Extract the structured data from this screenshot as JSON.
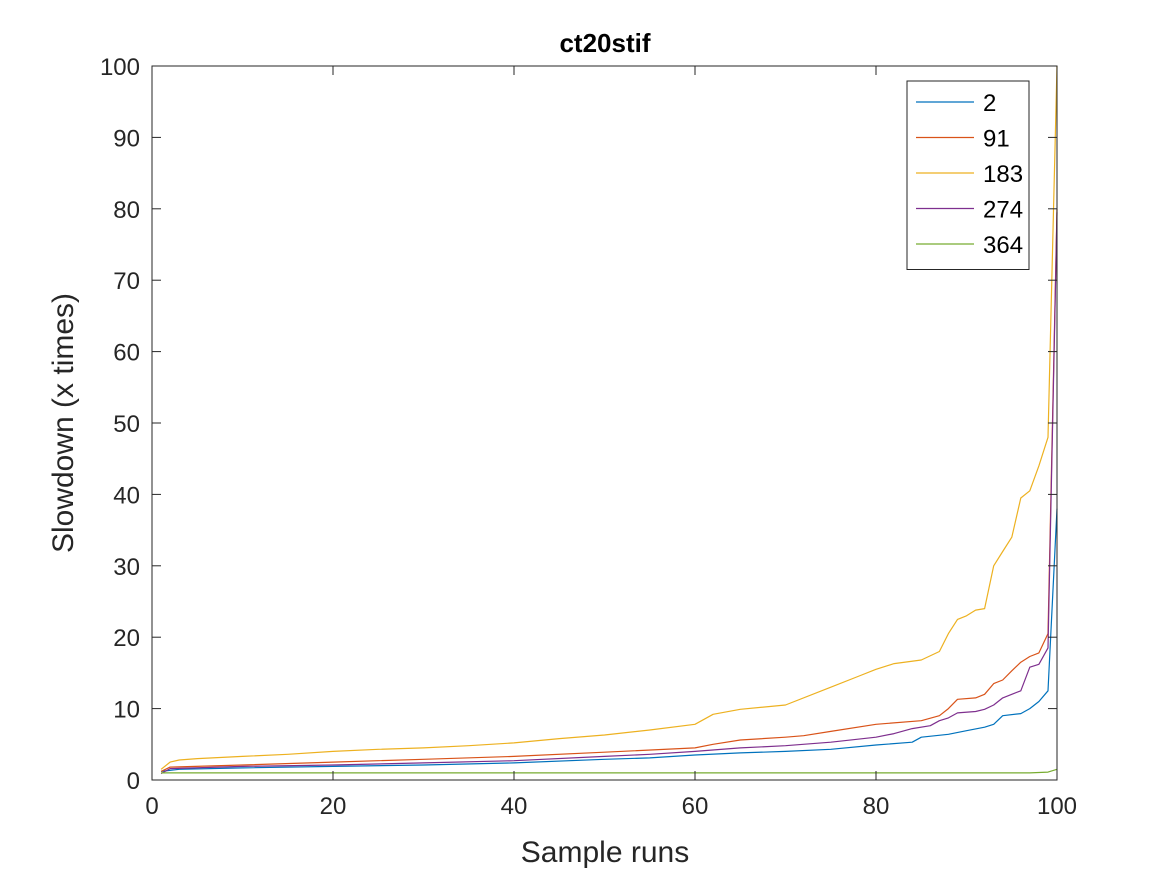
{
  "chart_data": {
    "type": "line",
    "title": "ct20stif",
    "xlabel": "Sample runs",
    "ylabel": "Slowdown (x times)",
    "xlim": [
      0,
      100
    ],
    "ylim": [
      0,
      100
    ],
    "xticks": [
      0,
      20,
      40,
      60,
      80,
      100
    ],
    "yticks": [
      0,
      10,
      20,
      30,
      40,
      50,
      60,
      70,
      80,
      90,
      100
    ],
    "grid": false,
    "legend_position": "top-right",
    "series": [
      {
        "name": "2",
        "color": "#0072BD",
        "points": [
          [
            1,
            1.2
          ],
          [
            3,
            1.5
          ],
          [
            10,
            1.7
          ],
          [
            20,
            1.9
          ],
          [
            30,
            2.1
          ],
          [
            40,
            2.4
          ],
          [
            50,
            2.9
          ],
          [
            55,
            3.1
          ],
          [
            60,
            3.5
          ],
          [
            65,
            3.8
          ],
          [
            70,
            4.0
          ],
          [
            75,
            4.3
          ],
          [
            80,
            4.9
          ],
          [
            84,
            5.3
          ],
          [
            85,
            6.0
          ],
          [
            88,
            6.4
          ],
          [
            90,
            6.9
          ],
          [
            92,
            7.4
          ],
          [
            93,
            7.8
          ],
          [
            94,
            9.0
          ],
          [
            96,
            9.3
          ],
          [
            97,
            10.0
          ],
          [
            98,
            11.0
          ],
          [
            99,
            12.5
          ],
          [
            100,
            38
          ]
        ]
      },
      {
        "name": "91",
        "color": "#D95319",
        "points": [
          [
            1,
            1.2
          ],
          [
            2,
            1.8
          ],
          [
            10,
            2.1
          ],
          [
            20,
            2.5
          ],
          [
            30,
            2.9
          ],
          [
            40,
            3.3
          ],
          [
            50,
            3.9
          ],
          [
            60,
            4.5
          ],
          [
            62,
            5.0
          ],
          [
            65,
            5.6
          ],
          [
            70,
            6.0
          ],
          [
            72,
            6.2
          ],
          [
            75,
            6.8
          ],
          [
            80,
            7.8
          ],
          [
            85,
            8.3
          ],
          [
            87,
            9.0
          ],
          [
            88,
            10.0
          ],
          [
            89,
            11.3
          ],
          [
            91,
            11.5
          ],
          [
            92,
            12.0
          ],
          [
            93,
            13.5
          ],
          [
            94,
            14.0
          ],
          [
            95,
            15.3
          ],
          [
            96,
            16.5
          ],
          [
            97,
            17.3
          ],
          [
            98,
            17.8
          ],
          [
            99,
            20.5
          ],
          [
            100,
            80
          ]
        ]
      },
      {
        "name": "183",
        "color": "#EDB120",
        "points": [
          [
            1,
            1.5
          ],
          [
            2,
            2.5
          ],
          [
            3,
            2.8
          ],
          [
            5,
            3.0
          ],
          [
            10,
            3.3
          ],
          [
            15,
            3.6
          ],
          [
            20,
            4.0
          ],
          [
            25,
            4.3
          ],
          [
            30,
            4.5
          ],
          [
            35,
            4.8
          ],
          [
            40,
            5.2
          ],
          [
            45,
            5.8
          ],
          [
            50,
            6.3
          ],
          [
            55,
            7.0
          ],
          [
            60,
            7.8
          ],
          [
            62,
            9.2
          ],
          [
            65,
            9.9
          ],
          [
            70,
            10.5
          ],
          [
            75,
            13.0
          ],
          [
            78,
            14.5
          ],
          [
            80,
            15.5
          ],
          [
            82,
            16.3
          ],
          [
            85,
            16.8
          ],
          [
            87,
            18.0
          ],
          [
            88,
            20.5
          ],
          [
            89,
            22.5
          ],
          [
            90,
            23.0
          ],
          [
            91,
            23.8
          ],
          [
            92,
            24.0
          ],
          [
            93,
            30.0
          ],
          [
            94,
            32.0
          ],
          [
            95,
            34.0
          ],
          [
            96,
            39.5
          ],
          [
            97,
            40.5
          ],
          [
            98,
            44.0
          ],
          [
            99,
            48.0
          ],
          [
            100,
            100
          ]
        ]
      },
      {
        "name": "274",
        "color": "#7E2F8E",
        "points": [
          [
            1,
            0.9
          ],
          [
            2,
            1.6
          ],
          [
            10,
            1.9
          ],
          [
            20,
            2.1
          ],
          [
            30,
            2.4
          ],
          [
            40,
            2.7
          ],
          [
            50,
            3.3
          ],
          [
            55,
            3.6
          ],
          [
            60,
            4.0
          ],
          [
            65,
            4.5
          ],
          [
            70,
            4.8
          ],
          [
            75,
            5.3
          ],
          [
            80,
            6.0
          ],
          [
            82,
            6.5
          ],
          [
            84,
            7.2
          ],
          [
            86,
            7.6
          ],
          [
            87,
            8.3
          ],
          [
            88,
            8.7
          ],
          [
            89,
            9.4
          ],
          [
            91,
            9.6
          ],
          [
            92,
            9.9
          ],
          [
            93,
            10.5
          ],
          [
            94,
            11.5
          ],
          [
            95,
            12.0
          ],
          [
            96,
            12.5
          ],
          [
            97,
            15.8
          ],
          [
            98,
            16.2
          ],
          [
            99,
            18.5
          ],
          [
            100,
            79.5
          ]
        ]
      },
      {
        "name": "364",
        "color": "#77AC30",
        "points": [
          [
            1,
            1.0
          ],
          [
            20,
            1.0
          ],
          [
            40,
            1.0
          ],
          [
            60,
            1.0
          ],
          [
            80,
            1.0
          ],
          [
            97,
            1.0
          ],
          [
            99,
            1.1
          ],
          [
            100,
            1.5
          ]
        ]
      }
    ]
  }
}
